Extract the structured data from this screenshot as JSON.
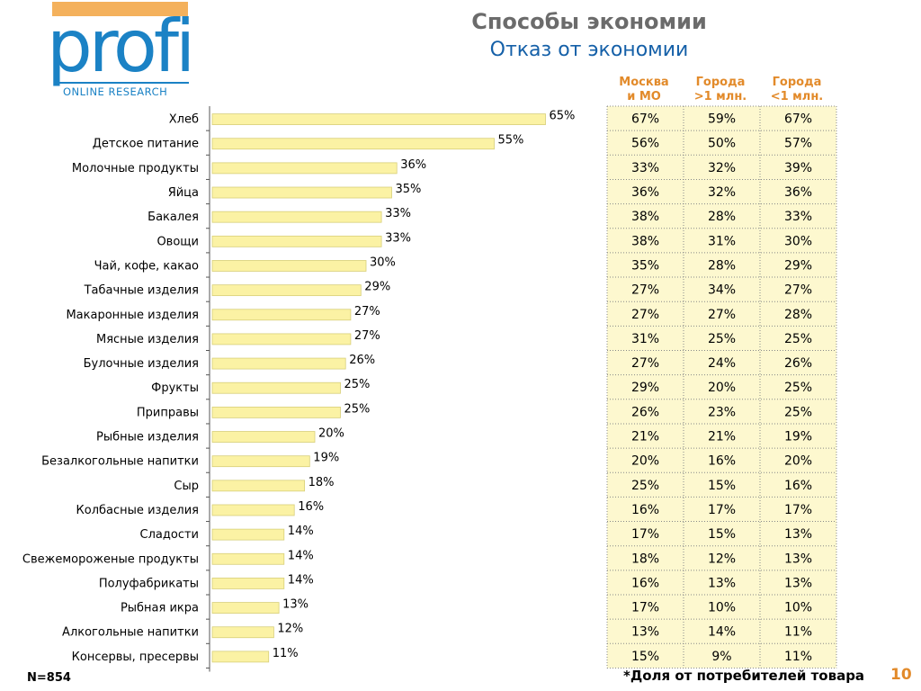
{
  "logo": {
    "name": "profi",
    "subtitle": "ONLINE RESEARCH"
  },
  "header": {
    "title": "Способы экономии",
    "subtitle": "Отказ от экономии"
  },
  "table": {
    "columns": [
      {
        "line1": "Москва",
        "line2": "и МО"
      },
      {
        "line1": "Города",
        "line2": ">1 млн."
      },
      {
        "line1": "Города",
        "line2": "<1 млн."
      }
    ]
  },
  "colors": {
    "bar_fill": "#fbf2a4",
    "bar_stroke": "#d8cf7a",
    "cell_fill": "#fdf8cf",
    "grid_dots": "#888888",
    "accent_orange": "#e28a2a",
    "logo_blue": "#1b82c5"
  },
  "chart_data": {
    "type": "bar",
    "orientation": "horizontal",
    "categories": [
      "Хлеб",
      "Детское питание",
      "Молочные продукты",
      "Яйца",
      "Бакалея",
      "Овощи",
      "Чай, кофе, какао",
      "Табачные изделия",
      "Макаронные изделия",
      "Мясные изделия",
      "Булочные изделия",
      "Фрукты",
      "Приправы",
      "Рыбные изделия",
      "Безалкогольные напитки",
      "Сыр",
      "Колбасные изделия",
      "Сладости",
      "Свежемороженые продукты",
      "Полуфабрикаты",
      "Рыбная икра",
      "Алкогольные напитки",
      "Консервы, пресервы"
    ],
    "values": [
      65,
      55,
      36,
      35,
      33,
      33,
      30,
      29,
      27,
      27,
      26,
      25,
      25,
      20,
      19,
      18,
      16,
      14,
      14,
      14,
      13,
      12,
      11
    ],
    "value_labels": [
      "65%",
      "55%",
      "36%",
      "35%",
      "33%",
      "33%",
      "30%",
      "29%",
      "27%",
      "27%",
      "26%",
      "25%",
      "25%",
      "20%",
      "19%",
      "18%",
      "16%",
      "14%",
      "14%",
      "14%",
      "13%",
      "12%",
      "11%"
    ],
    "xlim": [
      0,
      100
    ],
    "table_values": [
      [
        "67%",
        "59%",
        "67%"
      ],
      [
        "56%",
        "50%",
        "57%"
      ],
      [
        "33%",
        "32%",
        "39%"
      ],
      [
        "36%",
        "32%",
        "36%"
      ],
      [
        "38%",
        "28%",
        "33%"
      ],
      [
        "38%",
        "31%",
        "30%"
      ],
      [
        "35%",
        "28%",
        "29%"
      ],
      [
        "27%",
        "34%",
        "27%"
      ],
      [
        "27%",
        "27%",
        "28%"
      ],
      [
        "31%",
        "25%",
        "25%"
      ],
      [
        "27%",
        "24%",
        "26%"
      ],
      [
        "29%",
        "20%",
        "25%"
      ],
      [
        "26%",
        "23%",
        "25%"
      ],
      [
        "21%",
        "21%",
        "19%"
      ],
      [
        "20%",
        "16%",
        "20%"
      ],
      [
        "25%",
        "15%",
        "16%"
      ],
      [
        "16%",
        "17%",
        "17%"
      ],
      [
        "17%",
        "15%",
        "13%"
      ],
      [
        "18%",
        "12%",
        "13%"
      ],
      [
        "16%",
        "13%",
        "13%"
      ],
      [
        "17%",
        "10%",
        "10%"
      ],
      [
        "13%",
        "14%",
        "11%"
      ],
      [
        "15%",
        "9%",
        "11%"
      ]
    ]
  },
  "footer": {
    "sample": "N=854",
    "note": "*Доля  от потребителей товара",
    "page": "10"
  }
}
